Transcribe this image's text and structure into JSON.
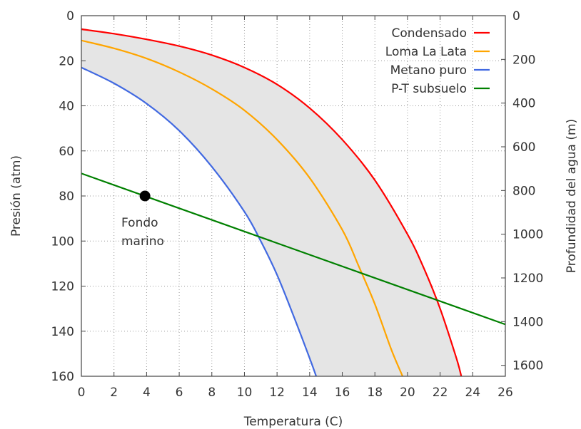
{
  "chart_data": {
    "type": "line",
    "xlabel": "Temperatura (C)",
    "ylabel": "Presión (atm)",
    "y2label": "Profundidad del agua (m)",
    "xlim": [
      0,
      26
    ],
    "ylim": [
      0,
      160
    ],
    "y_inverted": true,
    "y2lim": [
      0,
      1650
    ],
    "x_ticks": [
      "0",
      "2",
      "4",
      "6",
      "8",
      "10",
      "12",
      "14",
      "16",
      "18",
      "20",
      "22",
      "24",
      "26"
    ],
    "y_ticks": [
      "0",
      "20",
      "40",
      "60",
      "80",
      "100",
      "120",
      "140",
      "160"
    ],
    "y2_ticks": [
      "0",
      "200",
      "400",
      "600",
      "800",
      "1000",
      "1200",
      "1400",
      "1600"
    ],
    "grid": true,
    "legend_position": "top-right",
    "series": [
      {
        "name": "Condensado",
        "color": "#ff0000",
        "x": [
          0,
          2,
          4,
          6,
          8,
          10,
          12,
          14,
          16,
          18,
          20,
          21,
          22,
          23,
          23.3
        ],
        "y": [
          6,
          8,
          10.5,
          13.5,
          17.5,
          23,
          30.5,
          41,
          55,
          73,
          97,
          112,
          130,
          152,
          160
        ]
      },
      {
        "name": "Loma La Lata",
        "color": "#ffa500",
        "x": [
          0,
          2,
          4,
          6,
          8,
          10,
          12,
          14,
          16,
          17,
          18,
          19,
          19.7
        ],
        "y": [
          11,
          14.5,
          19,
          25,
          32.5,
          42,
          55,
          72,
          95,
          111,
          128,
          148,
          160
        ]
      },
      {
        "name": "Metano puro",
        "color": "#4169e1",
        "x": [
          0,
          2,
          4,
          6,
          8,
          10,
          11,
          12,
          13,
          14,
          14.4
        ],
        "y": [
          23,
          30,
          39,
          51,
          67,
          87,
          100,
          115,
          133,
          152,
          160
        ]
      },
      {
        "name": "P-T subsuelo",
        "color": "#008000",
        "x": [
          0,
          26
        ],
        "y": [
          70,
          137
        ]
      }
    ],
    "shaded_region": {
      "between": [
        "Metano puro",
        "Condensado"
      ],
      "color": "#e5e5e5"
    },
    "annotations": [
      {
        "x": 3.9,
        "y": 80,
        "marker": "point",
        "lines": [
          "Fondo",
          "marino"
        ]
      }
    ]
  }
}
